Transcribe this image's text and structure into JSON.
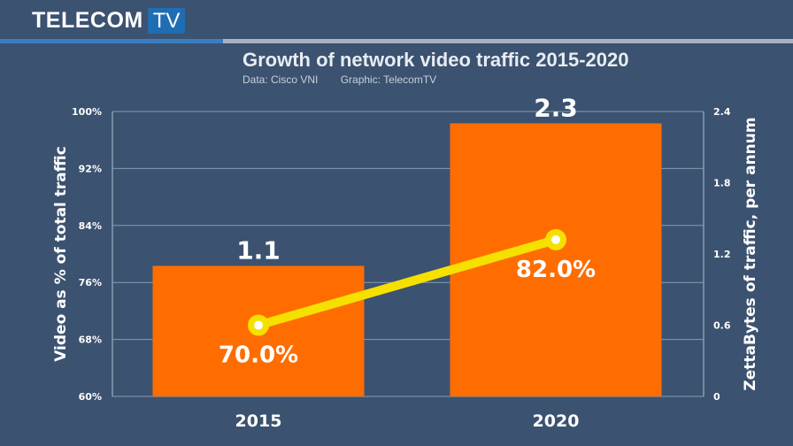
{
  "brand": {
    "word": "TELECOM",
    "tv": "TV"
  },
  "header": {
    "title": "Growth of network video traffic 2015-2020",
    "source": "Data: Cisco VNI",
    "credit": "Graphic: TelecomTV"
  },
  "colors": {
    "background": "#3b5270",
    "bar": "#ff6d00",
    "line": "#f5e000",
    "grid": "#8a9cb2",
    "text": "#ffffff"
  },
  "chart_data": {
    "type": "bar",
    "categories": [
      "2015",
      "2020"
    ],
    "series": [
      {
        "chart": "bar",
        "axis": "right",
        "values": [
          1.1,
          2.3
        ],
        "labels": [
          "1.1",
          "2.3"
        ]
      },
      {
        "chart": "line",
        "axis": "left",
        "values": [
          70.0,
          82.0
        ],
        "labels": [
          "70.0%",
          "82.0%"
        ]
      }
    ],
    "ylabel_left": "Video as % of total traffic",
    "ylabel_right": "ZettaBytes of traffic, per annum",
    "ylim_left": [
      60,
      100
    ],
    "ylim_right": [
      0,
      2.4
    ],
    "yticks_left": [
      "100%",
      "92%",
      "84%",
      "76%",
      "68%",
      "60%"
    ],
    "yticks_right": [
      "2.4",
      "1.8",
      "1.2",
      "0.6",
      "0"
    ],
    "grid": true
  }
}
